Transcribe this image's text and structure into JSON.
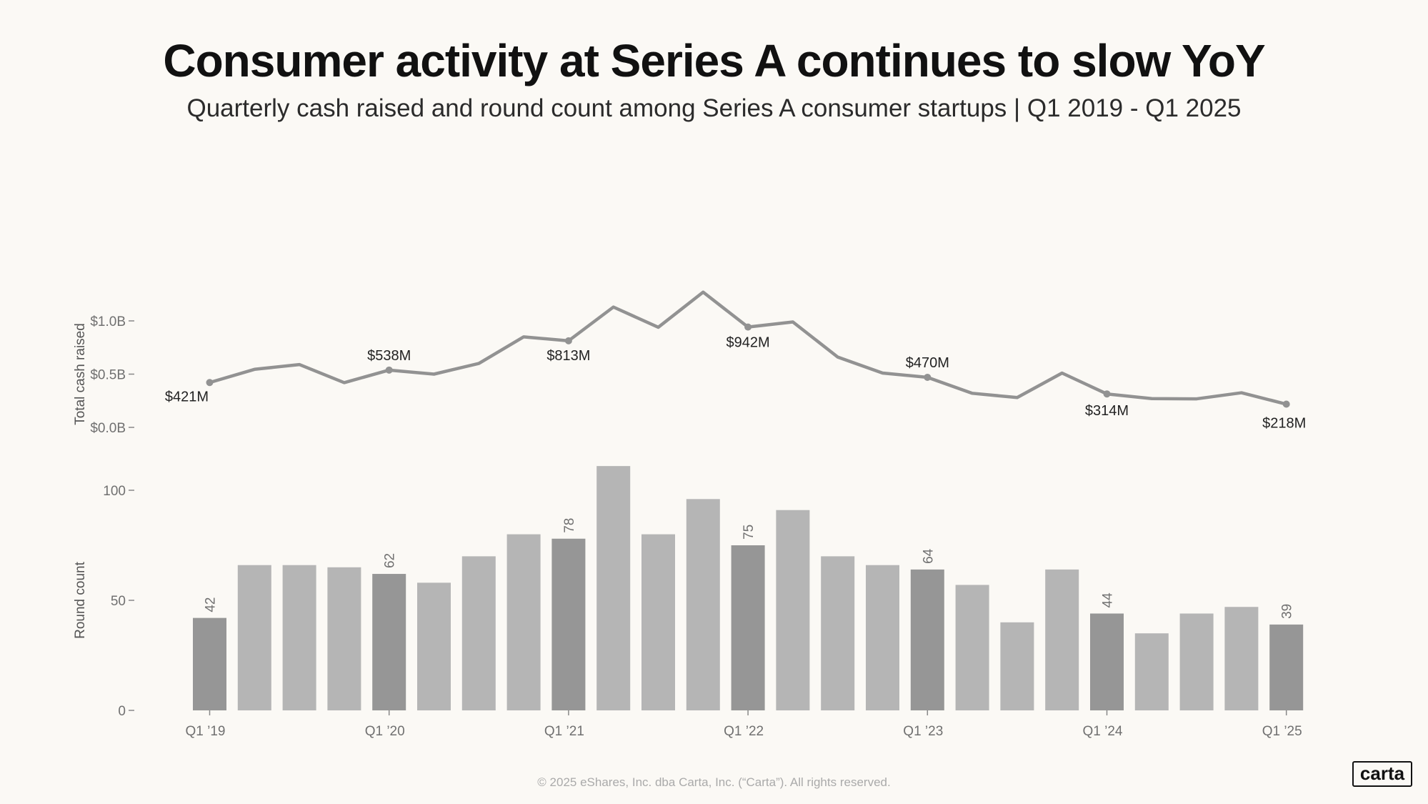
{
  "header": {
    "title": "Consumer activity at Series A continues to slow YoY",
    "subtitle": "Quarterly cash raised and round count among Series A consumer startups  | Q1 2019 - Q1 2025"
  },
  "footer": {
    "copyright": "© 2025 eShares, Inc. dba Carta, Inc. (“Carta”). All rights reserved.",
    "logo_text": "carta"
  },
  "colors": {
    "line": "#929292",
    "bar": "#b5b5b5",
    "bar_highlight": "#969696"
  },
  "chart_data": [
    {
      "type": "line",
      "ylabel": "Total cash raised",
      "ylim_millions": [
        0,
        1300
      ],
      "yticks": [
        {
          "value": 0,
          "label": "$0.0B"
        },
        {
          "value": 500,
          "label": "$0.5B"
        },
        {
          "value": 1000,
          "label": "$1.0B"
        }
      ],
      "x": [
        "Q1 2019",
        "Q2 2019",
        "Q3 2019",
        "Q4 2019",
        "Q1 2020",
        "Q2 2020",
        "Q3 2020",
        "Q4 2020",
        "Q1 2021",
        "Q2 2021",
        "Q3 2021",
        "Q4 2021",
        "Q1 2022",
        "Q2 2022",
        "Q3 2022",
        "Q4 2022",
        "Q1 2023",
        "Q2 2023",
        "Q3 2023",
        "Q4 2023",
        "Q1 2024",
        "Q2 2024",
        "Q3 2024",
        "Q4 2024",
        "Q1 2025"
      ],
      "values_millions": [
        421,
        545,
        590,
        420,
        538,
        500,
        600,
        850,
        813,
        1130,
        940,
        1270,
        942,
        990,
        660,
        510,
        470,
        320,
        280,
        510,
        314,
        270,
        268,
        325,
        218
      ],
      "point_labels": [
        {
          "index": 0,
          "label": "$421M"
        },
        {
          "index": 4,
          "label": "$538M"
        },
        {
          "index": 8,
          "label": "$813M"
        },
        {
          "index": 12,
          "label": "$942M"
        },
        {
          "index": 16,
          "label": "$470M"
        },
        {
          "index": 20,
          "label": "$314M"
        },
        {
          "index": 24,
          "label": "$218M"
        }
      ]
    },
    {
      "type": "bar",
      "ylabel": "Round count",
      "ylim": [
        0,
        115
      ],
      "yticks": [
        {
          "value": 0,
          "label": "0"
        },
        {
          "value": 50,
          "label": "50"
        },
        {
          "value": 100,
          "label": "100"
        }
      ],
      "values": [
        42,
        66,
        66,
        65,
        62,
        58,
        70,
        80,
        78,
        111,
        80,
        96,
        75,
        91,
        70,
        66,
        64,
        57,
        40,
        64,
        44,
        35,
        44,
        47,
        39
      ],
      "highlight_indices": [
        0,
        4,
        8,
        12,
        16,
        20,
        24
      ],
      "bar_labels": [
        {
          "index": 0,
          "label": "42"
        },
        {
          "index": 4,
          "label": "62"
        },
        {
          "index": 8,
          "label": "78"
        },
        {
          "index": 12,
          "label": "75"
        },
        {
          "index": 16,
          "label": "64"
        },
        {
          "index": 20,
          "label": "44"
        },
        {
          "index": 24,
          "label": "39"
        }
      ],
      "xticks": [
        {
          "index": 0,
          "label": "Q1 ’19"
        },
        {
          "index": 4,
          "label": "Q1 ’20"
        },
        {
          "index": 8,
          "label": "Q1 ’21"
        },
        {
          "index": 12,
          "label": "Q1 ’22"
        },
        {
          "index": 16,
          "label": "Q1 ’23"
        },
        {
          "index": 20,
          "label": "Q1 ’24"
        },
        {
          "index": 24,
          "label": "Q1 ’25"
        }
      ]
    }
  ]
}
